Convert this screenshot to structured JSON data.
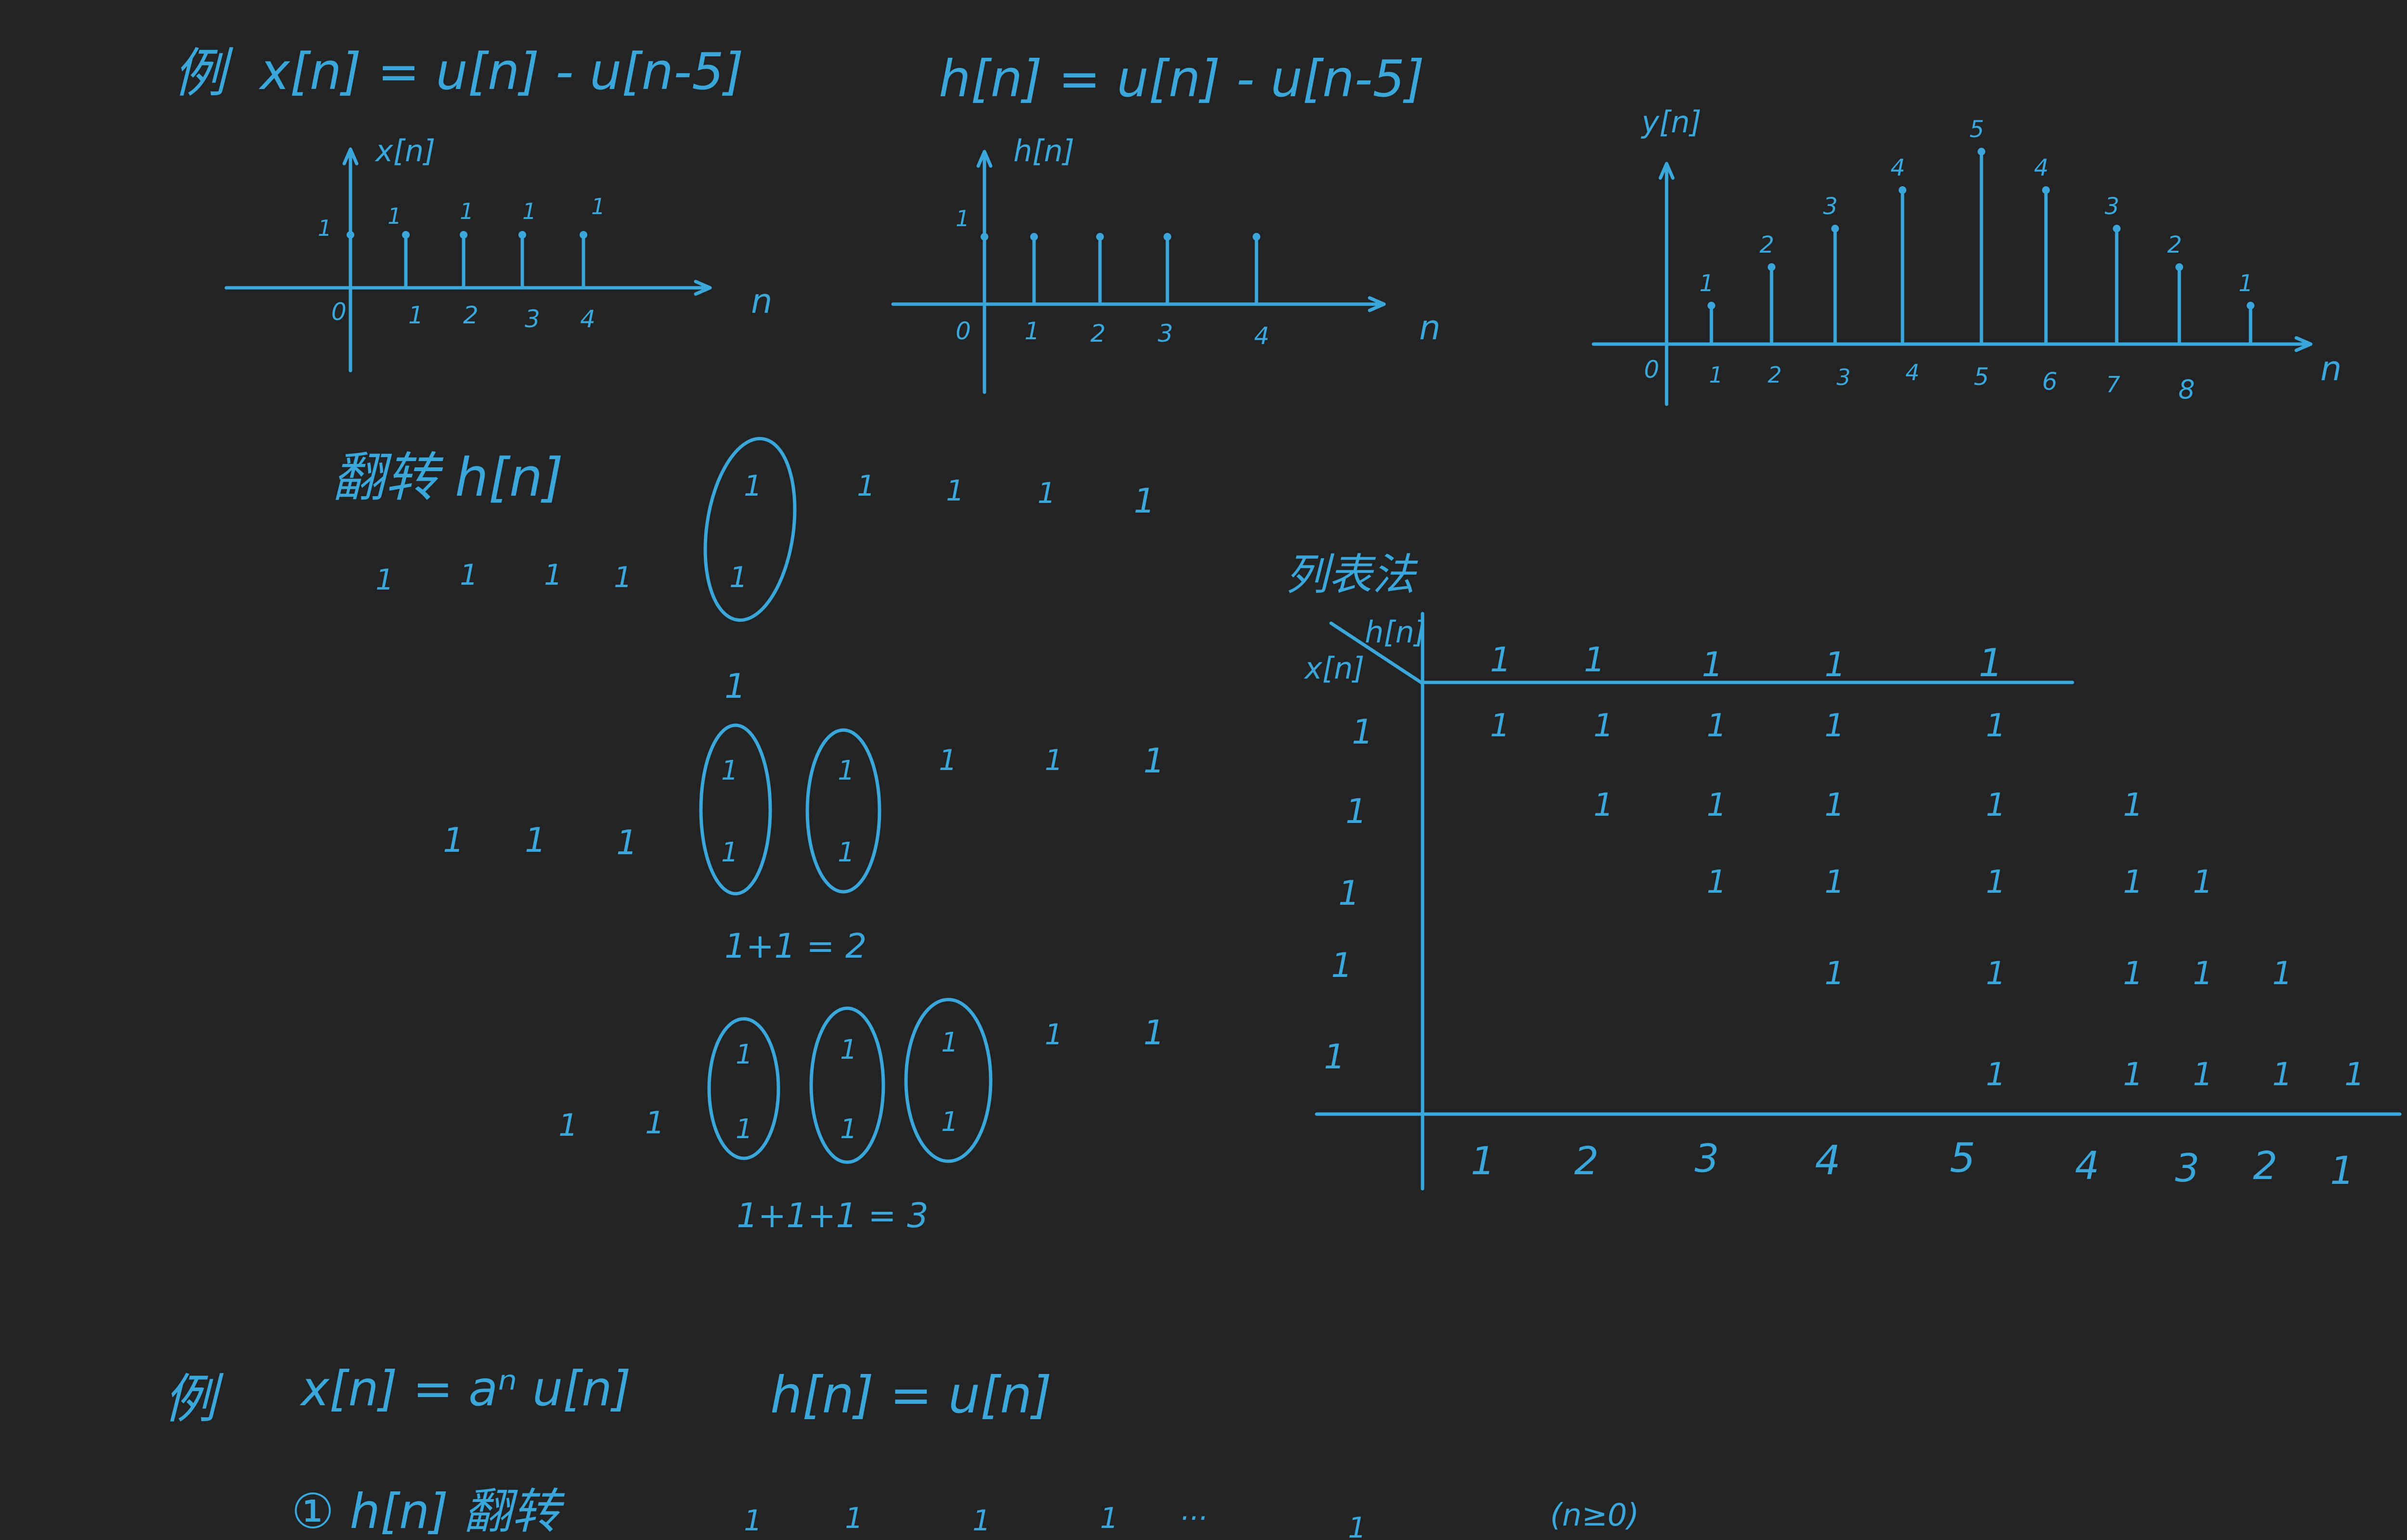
{
  "example1": {
    "label": "例",
    "x_def": "x[n] = u[n] - u[n-5]",
    "h_def": "h[n] = u[n] - u[n-5]"
  },
  "plot_x": {
    "ylabel": "x[n]",
    "xlabel": "n",
    "zero": "0",
    "ticks": [
      "1",
      "2",
      "3",
      "4"
    ],
    "value_labels": [
      "1",
      "1",
      "1",
      "1",
      "1"
    ],
    "values": [
      1,
      1,
      1,
      1,
      1
    ]
  },
  "plot_h": {
    "ylabel": "h[n]",
    "xlabel": "n",
    "zero": "0",
    "ticks": [
      "1",
      "2",
      "3",
      "4"
    ],
    "value_labels": [
      "1"
    ],
    "values": [
      1,
      1,
      1,
      1,
      1
    ]
  },
  "plot_y": {
    "ylabel": "y[n]",
    "xlabel": "n",
    "zero": "0",
    "ticks": [
      "1",
      "2",
      "3",
      "4",
      "5",
      "6",
      "7",
      "8"
    ],
    "value_labels": [
      "1",
      "2",
      "3",
      "4",
      "5",
      "4",
      "3",
      "2",
      "1"
    ],
    "values": [
      1,
      2,
      3,
      4,
      5,
      4,
      3,
      2,
      1
    ]
  },
  "flip": {
    "title": "翻转 h[n]",
    "row1_left": [
      "1",
      "1",
      "1",
      "1"
    ],
    "row1_overlap": [
      "1",
      "1"
    ],
    "row1_right": [
      "1",
      "1",
      "1",
      "1"
    ],
    "row2_top": "1",
    "row2_left": [
      "1",
      "1",
      "1"
    ],
    "row2_right": [
      "1",
      "1",
      "1"
    ],
    "row2_sum": "1+1 = 2",
    "row3_left": [
      "1",
      "1"
    ],
    "row3_right": [
      "1",
      "1"
    ],
    "row3_sum": "1+1+1 = 3"
  },
  "table": {
    "title": "列表法",
    "corner_h": "h[n]",
    "corner_x": "x[n]",
    "header": [
      "1",
      "1",
      "1",
      "1",
      "1"
    ],
    "left": [
      "1",
      "1",
      "1",
      "1",
      "1"
    ],
    "bottom": [
      "1",
      "2",
      "3",
      "4",
      "5",
      "4",
      "3",
      "2",
      "1"
    ]
  },
  "example2": {
    "label": "例",
    "x_def": "x[n] = aⁿ u[n]",
    "h_def": "h[n] = u[n]",
    "step": "① h[n] 翻转",
    "seq": [
      "1",
      "1",
      "1",
      "1",
      "···",
      "1"
    ],
    "cond": "(n≥0)"
  }
}
